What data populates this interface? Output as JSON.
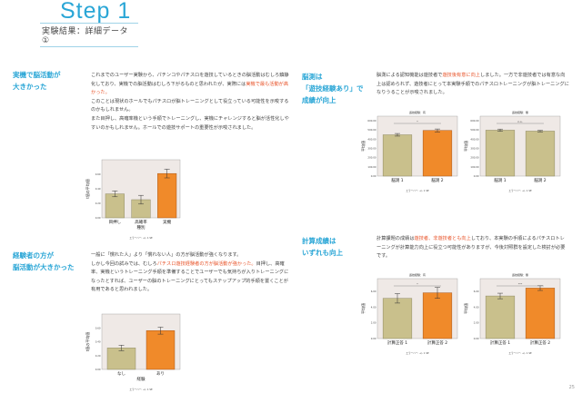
{
  "header": {
    "title": "Step 1",
    "subtitle": "実験結果：詳細データ ①"
  },
  "sections": [
    {
      "heading": [
        "実機で脳活動が",
        "大きかった"
      ],
      "paragraphs": [
        [
          "これまでのユーザー実験から、パチンコやパチスロを遊技しているときの脳活動はむしろ鎮静化しており、実機での脳活動はむしろ下がるものと思われたが、実際には",
          "実機で最も活動が高かった。",
          ""
        ],
        [
          "このことは現状のホールでもパチスロが脳トレーニングとして役立っている可能性を示唆するのかもしれません。",
          "",
          ""
        ],
        [
          "また目押し、高確率機という手順でトレーニングし、実機にチャレンジすると脳が活性化しやすいのかもしれません。ホールでの遊技サポートの重要性が示唆されました。",
          "",
          ""
        ]
      ]
    },
    {
      "heading": [
        "経験者の方が",
        "脳活動が大きかった"
      ],
      "paragraphs": [
        [
          "一般に「慣れた人」より「慣れない人」の方が脳活動が強くなります。",
          "",
          ""
        ],
        [
          "しかし今回の試みでは、むしろ",
          "パチスロ遊技経験者の方が脳活動が強かった。",
          "目押し、高確率、実機というトレーニング手順を準備することでユーザーでも気持ちが入りトレーニングになったとすれば、ユーザーの脳のトレーニングにとってもステップアップ的手順を置くことが有用であると思われました。"
        ]
      ]
    },
    {
      "heading": [
        "脳測は",
        "「遊技経験あり」で",
        "成績が向上"
      ],
      "paragraphs": [
        [
          "脳測による認知機能は遊技者で",
          "遊技後有意に向上",
          "しました。一方で非遊技者では有意な向上は認められず、遊技者にとって本実験手順でのパチスロトレーニングが脳トレーニングになりうることが示唆されました。"
        ]
      ]
    },
    {
      "heading": [
        "計算成績は",
        "いずれも向上"
      ],
      "paragraphs": [
        [
          "計算課題の成績は",
          "遊技者、非遊技者とも向上",
          "しており、本実験の手順によるパチスロトレーニングが計算能力向上に役立つ可能性がありますが、今後対照群を設定した検討が必要です。"
        ]
      ]
    }
  ],
  "chart_data": [
    {
      "type": "bar",
      "title": "",
      "ylabel": "t値の平均値",
      "xlabel": "種別",
      "categories": [
        "目押し",
        "高確率",
        "実機"
      ],
      "values": [
        0.33,
        0.25,
        0.61
      ],
      "errors": [
        0.04,
        0.06,
        0.06
      ],
      "highlight": [
        false,
        false,
        true
      ],
      "ylim": [
        0,
        0.8
      ],
      "yticks": [
        "0.00",
        "0.20",
        "0.40",
        "0.60"
      ],
      "note": "エラーバー: +/- 1 SE"
    },
    {
      "type": "bar",
      "title": "",
      "ylabel": "t値の平均値",
      "xlabel": "経験",
      "categories": [
        "なし",
        "あり"
      ],
      "values": [
        0.31,
        0.56
      ],
      "errors": [
        0.04,
        0.05
      ],
      "highlight": [
        false,
        true
      ],
      "ylim": [
        0,
        0.8
      ],
      "yticks": [
        "0.00",
        "0.20",
        "0.40",
        "0.60"
      ],
      "note": "エラーバー: +/- 1 SE"
    },
    {
      "type": "bar",
      "title": "遊技経験：有",
      "ylabel": "平均値",
      "xlabel": "",
      "categories": [
        "脳測 1",
        "脳測 2"
      ],
      "values": [
        448,
        495
      ],
      "errors": [
        14,
        16
      ],
      "highlight": [
        false,
        true
      ],
      "ylim": [
        0,
        650
      ],
      "yticks": [
        "0.00",
        "100.00",
        "200.00",
        "300.00",
        "400.00",
        "500.00",
        "600.00"
      ],
      "significance": "*",
      "note": "エラーバー: +/- 1 SE"
    },
    {
      "type": "bar",
      "title": "遊技経験：無",
      "ylabel": "平均値",
      "xlabel": "",
      "categories": [
        "脳測 1",
        "脳測 2"
      ],
      "values": [
        498,
        488
      ],
      "errors": [
        12,
        8
      ],
      "highlight": [
        false,
        false
      ],
      "ylim": [
        0,
        650
      ],
      "yticks": [
        "0.00",
        "100.00",
        "200.00",
        "300.00",
        "400.00",
        "500.00",
        "600.00"
      ],
      "significance": "n.s.",
      "note": "エラーバー: +/- 1 SE"
    },
    {
      "type": "bar",
      "title": "遊技経験：有",
      "ylabel": "平均値",
      "xlabel": "",
      "categories": [
        "計算正答 1",
        "計算正答 2"
      ],
      "values": [
        5.1,
        5.8
      ],
      "errors": [
        0.6,
        0.7
      ],
      "highlight": [
        false,
        true
      ],
      "ylim": [
        0,
        7.6
      ],
      "yticks": [
        "0.00",
        "2.00",
        "4.00",
        "6.00"
      ],
      "significance": "*",
      "note": "エラーバー: +/- 1 SE"
    },
    {
      "type": "bar",
      "title": "遊技経験：無",
      "ylabel": "平均値",
      "xlabel": "",
      "categories": [
        "計算正答 1",
        "計算正答 2"
      ],
      "values": [
        5.4,
        6.4
      ],
      "errors": [
        0.35,
        0.3
      ],
      "highlight": [
        false,
        true
      ],
      "ylim": [
        0,
        7.6
      ],
      "yticks": [
        "0.00",
        "2.00",
        "4.00",
        "6.00"
      ],
      "significance": "***",
      "note": "エラーバー: +/- 1 SE"
    }
  ],
  "footer": {
    "page": "25"
  },
  "colors": {
    "accent": "#2aa6d6",
    "highlight": "#e8542a",
    "bar": "#c9c08c",
    "bar_hl": "#f08a2a",
    "panel": "#efe9e6"
  }
}
